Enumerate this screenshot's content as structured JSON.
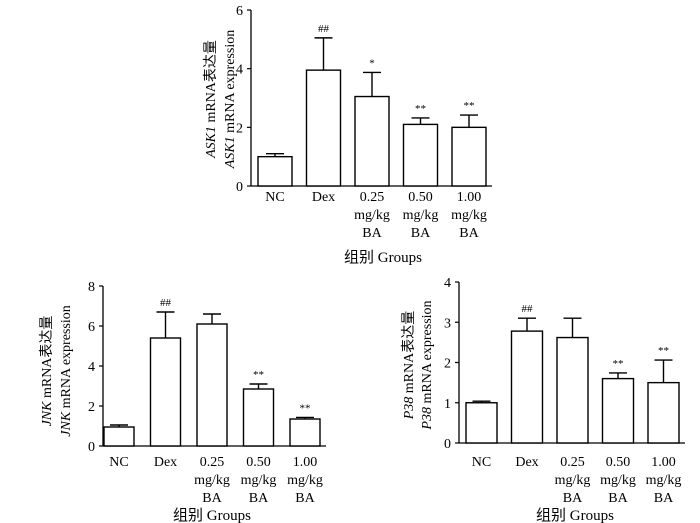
{
  "chart_data": [
    {
      "type": "bar",
      "ylabel_line1": "ASK1 mRNA表达量",
      "ylabel_line2": "ASK1 mRNA expression",
      "xlabel": "组别 Groups",
      "categories": [
        [
          "NC"
        ],
        [
          "Dex"
        ],
        [
          "0.25",
          "mg/kg",
          "BA"
        ],
        [
          "0.50",
          "mg/kg",
          "BA"
        ],
        [
          "1.00",
          "mg/kg",
          "BA"
        ]
      ],
      "values": [
        1.0,
        3.95,
        3.05,
        2.1,
        2.0
      ],
      "errors": [
        0.1,
        1.1,
        0.82,
        0.22,
        0.42
      ],
      "annotations": [
        "",
        "##",
        "*",
        "**",
        "**"
      ],
      "ylim": [
        0,
        6
      ],
      "yticks": [
        "0",
        "2",
        "4",
        "6"
      ]
    },
    {
      "type": "bar",
      "ylabel_line1": "JNK mRNA表达量",
      "ylabel_line2": "JNK mRNA expression",
      "xlabel": "组别 Groups",
      "categories": [
        [
          "NC"
        ],
        [
          "Dex"
        ],
        [
          "0.25",
          "mg/kg",
          "BA"
        ],
        [
          "0.50",
          "mg/kg",
          "BA"
        ],
        [
          "1.00",
          "mg/kg",
          "BA"
        ]
      ],
      "values": [
        0.95,
        5.4,
        6.1,
        2.85,
        1.35
      ],
      "errors": [
        0.1,
        1.3,
        0.5,
        0.25,
        0.08
      ],
      "annotations": [
        "",
        "##",
        "",
        "**",
        "**"
      ],
      "ylim": [
        0,
        8
      ],
      "yticks": [
        "0",
        "2",
        "4",
        "6",
        "8"
      ]
    },
    {
      "type": "bar",
      "ylabel_line1": "P38 mRNA表达量",
      "ylabel_line2": "P38 mRNA  expression",
      "xlabel": "组别 Groups",
      "categories": [
        [
          "NC"
        ],
        [
          "Dex"
        ],
        [
          "0.25",
          "mg/kg",
          "BA"
        ],
        [
          "0.50",
          "mg/kg",
          "BA"
        ],
        [
          "1.00",
          "mg/kg",
          "BA"
        ]
      ],
      "values": [
        1.0,
        2.78,
        2.62,
        1.6,
        1.5
      ],
      "errors": [
        0.04,
        0.32,
        0.48,
        0.14,
        0.56
      ],
      "annotations": [
        "",
        "##",
        "",
        "**",
        "**"
      ],
      "ylim": [
        0,
        4
      ],
      "yticks": [
        "0",
        "1",
        "2",
        "3",
        "4"
      ]
    }
  ]
}
